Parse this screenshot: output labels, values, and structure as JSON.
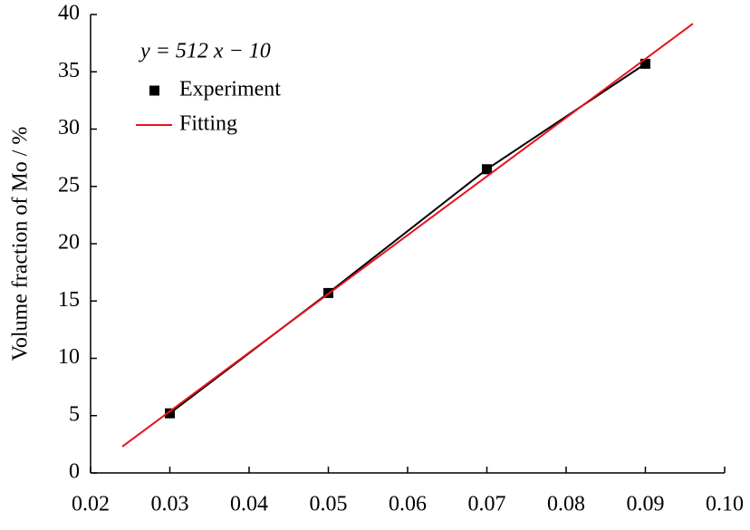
{
  "chart_data": {
    "type": "line",
    "annotation": "y = 512 x − 10",
    "y_label": "Volume  fraction of Mo / %",
    "series": [
      {
        "name": "Experiment",
        "color": "#000000",
        "marker": "square",
        "x": [
          0.03,
          0.05,
          0.07,
          0.09
        ],
        "values": [
          5.2,
          15.7,
          26.5,
          35.7
        ]
      },
      {
        "name": "Fitting",
        "color": "#e8121a",
        "marker": "none",
        "x": [
          0.024,
          0.096
        ],
        "values": [
          2.3,
          39.2
        ]
      }
    ],
    "xlim": [
      0.02,
      0.1
    ],
    "xticks": [
      0.02,
      0.03,
      0.04,
      0.05,
      0.06,
      0.07,
      0.08,
      0.09,
      {
        "value": 0.1,
        "label": "0.10"
      }
    ],
    "ylim": [
      0,
      40
    ],
    "yticks": [
      0,
      5,
      10,
      15,
      20,
      25,
      30,
      35,
      40
    ],
    "legend": "upper-left",
    "grid": false
  }
}
